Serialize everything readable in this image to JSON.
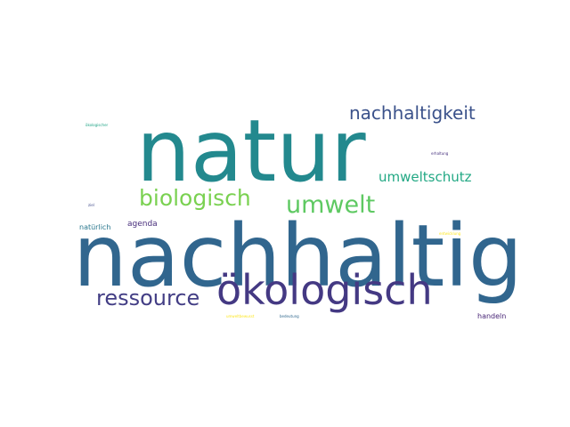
{
  "word_cloud": {
    "words": [
      {
        "key": "natur",
        "text": "natur",
        "color": "#23898e"
      },
      {
        "key": "nachhaltig",
        "text": "nachhaltig",
        "color": "#31668e"
      },
      {
        "key": "nachhaltigkeit",
        "text": "nachhaltigkeit",
        "color": "#3b528b"
      },
      {
        "key": "umweltschutz",
        "text": "umweltschutz",
        "color": "#22a884"
      },
      {
        "key": "biologisch",
        "text": "biologisch",
        "color": "#7ad151"
      },
      {
        "key": "umwelt",
        "text": "umwelt",
        "color": "#5ec962"
      },
      {
        "key": "oekologisch",
        "text": "ökologisch",
        "color": "#443983"
      },
      {
        "key": "ressource",
        "text": "ressource",
        "color": "#433e85"
      },
      {
        "key": "agenda",
        "text": "agenda",
        "color": "#472d7b"
      },
      {
        "key": "natuerlich",
        "text": "natürlich",
        "color": "#2a788e"
      },
      {
        "key": "handeln",
        "text": "handeln",
        "color": "#482576"
      },
      {
        "key": "oekologischer",
        "text": "ökologischer",
        "color": "#20a486"
      },
      {
        "key": "ziel",
        "text": "ziel",
        "color": "#3e4989"
      },
      {
        "key": "erhaltung",
        "text": "erhaltung",
        "color": "#46317e"
      },
      {
        "key": "entwicklung",
        "text": "entwicklung",
        "color": "#fde725"
      },
      {
        "key": "umweltbewusst",
        "text": "umweltbewusst",
        "color": "#fde725"
      },
      {
        "key": "bedeutung",
        "text": "bedeutung",
        "color": "#31688e"
      }
    ]
  }
}
